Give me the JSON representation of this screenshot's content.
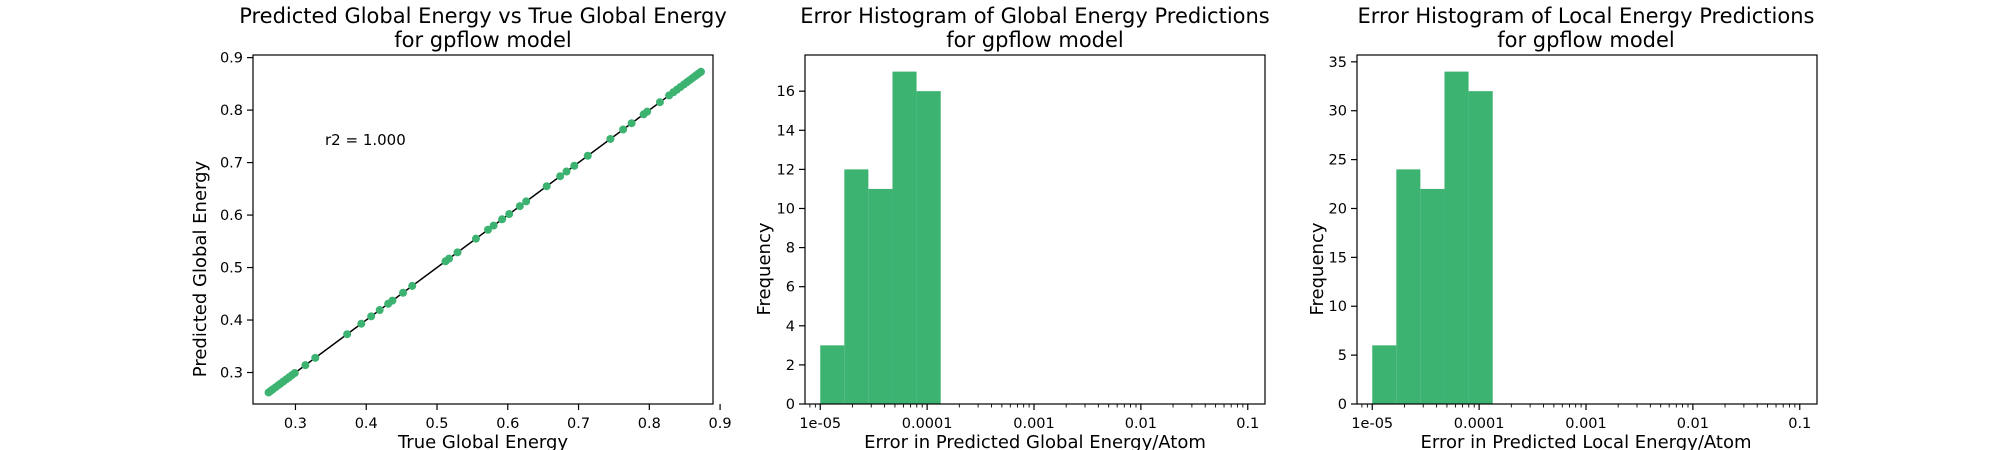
{
  "colors": {
    "marker": "#3cb371",
    "bar": "#3cb371",
    "line": "#000000",
    "axes": "#000000"
  },
  "chart_data": [
    {
      "type": "scatter",
      "title": "Predicted Global Energy vs True Global Energy\nfor gpflow model",
      "xlabel": "True Global Energy",
      "ylabel": "Predicted Global Energy",
      "xlim": [
        0.24,
        0.89
      ],
      "ylim": [
        0.24,
        0.905
      ],
      "xticks": [
        0.3,
        0.4,
        0.5,
        0.6,
        0.7,
        0.8,
        0.9
      ],
      "xticklabels": [
        "0.3",
        "0.4",
        "0.5",
        "0.6",
        "0.7",
        "0.8",
        "0.9"
      ],
      "yticks": [
        0.3,
        0.4,
        0.5,
        0.6,
        0.7,
        0.8,
        0.9
      ],
      "yticklabels": [
        "0.3",
        "0.4",
        "0.5",
        "0.6",
        "0.7",
        "0.8",
        "0.9"
      ],
      "grid": false,
      "annotation": "r2 = 1.000",
      "fit_line": [
        [
          0.262,
          0.262
        ],
        [
          0.873,
          0.873
        ]
      ],
      "points": {
        "x": [
          0.262,
          0.265,
          0.268,
          0.272,
          0.276,
          0.279,
          0.283,
          0.287,
          0.291,
          0.295,
          0.299,
          0.314,
          0.328,
          0.373,
          0.393,
          0.407,
          0.419,
          0.431,
          0.437,
          0.452,
          0.465,
          0.512,
          0.517,
          0.529,
          0.555,
          0.572,
          0.58,
          0.592,
          0.602,
          0.617,
          0.626,
          0.655,
          0.674,
          0.683,
          0.694,
          0.713,
          0.745,
          0.763,
          0.775,
          0.792,
          0.797,
          0.815,
          0.828,
          0.834,
          0.839,
          0.844,
          0.849,
          0.853,
          0.857,
          0.861,
          0.865,
          0.868,
          0.871,
          0.873
        ],
        "y": [
          0.262,
          0.265,
          0.268,
          0.272,
          0.276,
          0.279,
          0.283,
          0.287,
          0.291,
          0.295,
          0.299,
          0.314,
          0.328,
          0.373,
          0.393,
          0.407,
          0.419,
          0.431,
          0.437,
          0.452,
          0.465,
          0.512,
          0.517,
          0.529,
          0.555,
          0.572,
          0.58,
          0.592,
          0.602,
          0.617,
          0.626,
          0.655,
          0.674,
          0.683,
          0.694,
          0.713,
          0.745,
          0.763,
          0.775,
          0.792,
          0.797,
          0.815,
          0.828,
          0.834,
          0.839,
          0.844,
          0.849,
          0.853,
          0.857,
          0.861,
          0.865,
          0.868,
          0.871,
          0.873
        ]
      }
    },
    {
      "type": "bar",
      "subtype": "histogram",
      "title": "Error Histogram of Global Energy Predictions\nfor gpflow model",
      "xlabel": "Error in Predicted Global Energy/Atom",
      "ylabel": "Frequency",
      "xscale": "log",
      "xlim": [
        7.2e-06,
        0.145
      ],
      "ylim": [
        0,
        17.85
      ],
      "xticks": [
        1e-05,
        0.0001,
        0.001,
        0.01,
        0.1
      ],
      "xticklabels": [
        "1e-05",
        "0.0001",
        "0.001",
        "0.01",
        "0.1"
      ],
      "yticks": [
        0,
        2,
        4,
        6,
        8,
        10,
        12,
        14,
        16
      ],
      "yticklabels": [
        "0",
        "2",
        "4",
        "6",
        "8",
        "10",
        "12",
        "14",
        "16"
      ],
      "grid": false,
      "bins": [
        {
          "x0": 1e-05,
          "x1": 1.68e-05,
          "value": 3
        },
        {
          "x0": 1.68e-05,
          "x1": 2.82e-05,
          "value": 12
        },
        {
          "x0": 2.82e-05,
          "x1": 4.74e-05,
          "value": 11
        },
        {
          "x0": 4.74e-05,
          "x1": 7.97e-05,
          "value": 17
        },
        {
          "x0": 7.97e-05,
          "x1": 0.000134,
          "value": 16
        }
      ]
    },
    {
      "type": "bar",
      "subtype": "histogram",
      "title": "Error Histogram of Local Energy Predictions\nfor gpflow model",
      "xlabel": "Error in Predicted Local Energy/Atom",
      "ylabel": "Frequency",
      "xscale": "log",
      "xlim": [
        7.2e-06,
        0.145
      ],
      "ylim": [
        0,
        35.7
      ],
      "xticks": [
        1e-05,
        0.0001,
        0.001,
        0.01,
        0.1
      ],
      "xticklabels": [
        "1e-05",
        "0.0001",
        "0.001",
        "0.01",
        "0.1"
      ],
      "yticks": [
        0,
        5,
        10,
        15,
        20,
        25,
        30,
        35
      ],
      "yticklabels": [
        "0",
        "5",
        "10",
        "15",
        "20",
        "25",
        "30",
        "35"
      ],
      "grid": false,
      "bins": [
        {
          "x0": 1e-05,
          "x1": 1.68e-05,
          "value": 6
        },
        {
          "x0": 1.68e-05,
          "x1": 2.82e-05,
          "value": 24
        },
        {
          "x0": 2.82e-05,
          "x1": 4.74e-05,
          "value": 22
        },
        {
          "x0": 4.74e-05,
          "x1": 7.97e-05,
          "value": 34
        },
        {
          "x0": 7.97e-05,
          "x1": 0.000134,
          "value": 32
        }
      ]
    }
  ]
}
